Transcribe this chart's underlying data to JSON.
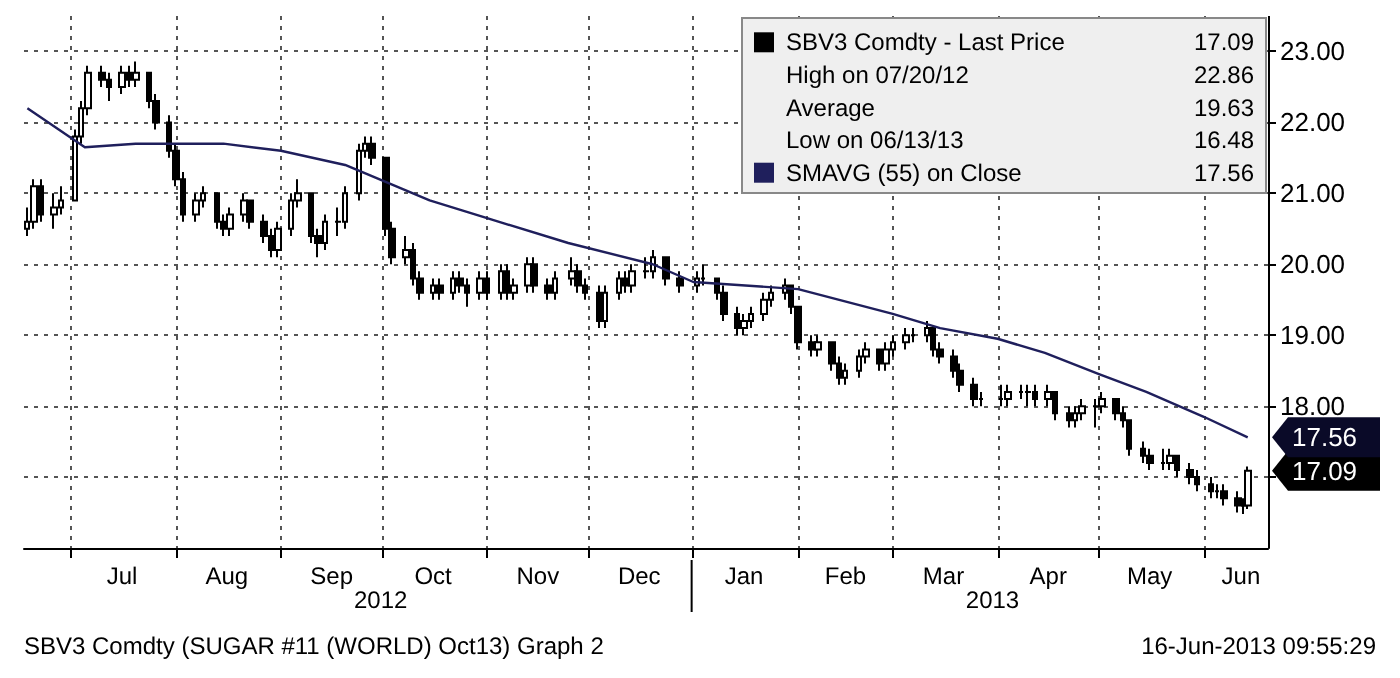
{
  "chart_data": {
    "type": "candlestick",
    "legend": "top right",
    "grid": true,
    "x": [
      "2012-06-18",
      "2012-06-20",
      "2012-06-22",
      "2012-06-26",
      "2012-06-28",
      "2012-07-02",
      "2012-07-04",
      "2012-07-06",
      "2012-07-10",
      "2012-07-12",
      "2012-07-16",
      "2012-07-18",
      "2012-07-20",
      "2012-07-24",
      "2012-07-26",
      "2012-07-30",
      "2012-08-01",
      "2012-08-03",
      "2012-08-07",
      "2012-08-09",
      "2012-08-13",
      "2012-08-15",
      "2012-08-17",
      "2012-08-21",
      "2012-08-23",
      "2012-08-27",
      "2012-08-29",
      "2012-08-31",
      "2012-09-04",
      "2012-09-06",
      "2012-09-10",
      "2012-09-12",
      "2012-09-14",
      "2012-09-18",
      "2012-09-20",
      "2012-09-24",
      "2012-09-26",
      "2012-09-28",
      "2012-10-02",
      "2012-10-04",
      "2012-10-08",
      "2012-10-10",
      "2012-10-12",
      "2012-10-16",
      "2012-10-18",
      "2012-10-22",
      "2012-10-24",
      "2012-10-26",
      "2012-10-30",
      "2012-11-01",
      "2012-11-05",
      "2012-11-07",
      "2012-11-09",
      "2012-11-13",
      "2012-11-15",
      "2012-11-19",
      "2012-11-21",
      "2012-11-26",
      "2012-11-28",
      "2012-11-30",
      "2012-12-04",
      "2012-12-06",
      "2012-12-10",
      "2012-12-12",
      "2012-12-14",
      "2012-12-18",
      "2012-12-20",
      "2012-12-24",
      "2012-12-28",
      "2013-01-02",
      "2013-01-04",
      "2013-01-08",
      "2013-01-10",
      "2013-01-14",
      "2013-01-16",
      "2013-01-18",
      "2013-01-22",
      "2013-01-24",
      "2013-01-28",
      "2013-01-30",
      "2013-02-01",
      "2013-02-05",
      "2013-02-07",
      "2013-02-11",
      "2013-02-13",
      "2013-02-15",
      "2013-02-19",
      "2013-02-21",
      "2013-02-25",
      "2013-02-27",
      "2013-03-01",
      "2013-03-05",
      "2013-03-07",
      "2013-03-11",
      "2013-03-13",
      "2013-03-15",
      "2013-03-19",
      "2013-03-21",
      "2013-03-25",
      "2013-03-27",
      "2013-04-02",
      "2013-04-04",
      "2013-04-08",
      "2013-04-10",
      "2013-04-12",
      "2013-04-16",
      "2013-04-18",
      "2013-04-22",
      "2013-04-24",
      "2013-04-26",
      "2013-04-30",
      "2013-05-02",
      "2013-05-06",
      "2013-05-08",
      "2013-05-10",
      "2013-05-14",
      "2013-05-16",
      "2013-05-20",
      "2013-05-22",
      "2013-05-24",
      "2013-05-28",
      "2013-05-30",
      "2013-06-03",
      "2013-06-05",
      "2013-06-07",
      "2013-06-11",
      "2013-06-13",
      "2013-06-14"
    ],
    "series": [
      {
        "name": "SBV3 Comdty - Last Price",
        "color": "#000000",
        "ohlc": [
          [
            20.5,
            20.8,
            20.4,
            20.6
          ],
          [
            20.6,
            21.2,
            20.5,
            21.1
          ],
          [
            21.1,
            21.2,
            20.6,
            20.7
          ],
          [
            20.7,
            21.0,
            20.5,
            20.8
          ],
          [
            20.8,
            21.1,
            20.7,
            20.9
          ],
          [
            20.9,
            21.9,
            20.9,
            21.8
          ],
          [
            21.8,
            22.3,
            21.7,
            22.2
          ],
          [
            22.2,
            22.8,
            22.1,
            22.7
          ],
          [
            22.7,
            22.8,
            22.5,
            22.6
          ],
          [
            22.6,
            22.7,
            22.3,
            22.5
          ],
          [
            22.5,
            22.8,
            22.4,
            22.7
          ],
          [
            22.7,
            22.8,
            22.5,
            22.6
          ],
          [
            22.6,
            22.86,
            22.5,
            22.7
          ],
          [
            22.7,
            22.7,
            22.2,
            22.3
          ],
          [
            22.3,
            22.4,
            21.9,
            22.0
          ],
          [
            22.0,
            22.1,
            21.5,
            21.6
          ],
          [
            21.6,
            21.7,
            21.1,
            21.2
          ],
          [
            21.2,
            21.3,
            20.6,
            20.7
          ],
          [
            20.7,
            21.0,
            20.6,
            20.9
          ],
          [
            20.9,
            21.1,
            20.8,
            21.0
          ],
          [
            21.0,
            21.0,
            20.5,
            20.6
          ],
          [
            20.6,
            20.7,
            20.4,
            20.5
          ],
          [
            20.5,
            20.8,
            20.4,
            20.7
          ],
          [
            20.7,
            21.0,
            20.6,
            20.9
          ],
          [
            20.9,
            20.9,
            20.5,
            20.6
          ],
          [
            20.6,
            20.7,
            20.3,
            20.4
          ],
          [
            20.4,
            20.5,
            20.1,
            20.2
          ],
          [
            20.2,
            20.6,
            20.1,
            20.5
          ],
          [
            20.5,
            21.0,
            20.4,
            20.9
          ],
          [
            20.9,
            21.2,
            20.8,
            21.0
          ],
          [
            21.0,
            21.0,
            20.3,
            20.4
          ],
          [
            20.4,
            20.5,
            20.1,
            20.3
          ],
          [
            20.3,
            20.7,
            20.2,
            20.6
          ],
          [
            20.6,
            20.8,
            20.4,
            20.6
          ],
          [
            20.6,
            21.1,
            20.5,
            21.0
          ],
          [
            21.0,
            21.7,
            20.9,
            21.6
          ],
          [
            21.6,
            21.8,
            21.5,
            21.7
          ],
          [
            21.7,
            21.8,
            21.4,
            21.5
          ],
          [
            21.5,
            21.5,
            20.4,
            20.5
          ],
          [
            20.5,
            20.6,
            20.0,
            20.1
          ],
          [
            20.1,
            20.4,
            20.0,
            20.2
          ],
          [
            20.2,
            20.3,
            19.7,
            19.8
          ],
          [
            19.8,
            19.9,
            19.5,
            19.6
          ],
          [
            19.6,
            19.8,
            19.5,
            19.7
          ],
          [
            19.7,
            19.8,
            19.5,
            19.6
          ],
          [
            19.6,
            19.9,
            19.5,
            19.8
          ],
          [
            19.8,
            19.9,
            19.6,
            19.7
          ],
          [
            19.7,
            19.8,
            19.4,
            19.6
          ],
          [
            19.6,
            19.9,
            19.5,
            19.8
          ],
          [
            19.8,
            19.9,
            19.5,
            19.6
          ],
          [
            19.6,
            20.0,
            19.5,
            19.9
          ],
          [
            19.9,
            20.0,
            19.5,
            19.6
          ],
          [
            19.6,
            19.8,
            19.5,
            19.7
          ],
          [
            19.7,
            20.1,
            19.6,
            20.0
          ],
          [
            20.0,
            20.1,
            19.6,
            19.7
          ],
          [
            19.7,
            19.8,
            19.5,
            19.6
          ],
          [
            19.6,
            19.9,
            19.5,
            19.8
          ],
          [
            19.8,
            20.1,
            19.7,
            19.9
          ],
          [
            19.9,
            20.0,
            19.6,
            19.7
          ],
          [
            19.7,
            19.8,
            19.5,
            19.6
          ],
          [
            19.6,
            19.7,
            19.1,
            19.2
          ],
          [
            19.2,
            19.7,
            19.1,
            19.6
          ],
          [
            19.6,
            19.9,
            19.5,
            19.8
          ],
          [
            19.8,
            19.9,
            19.6,
            19.7
          ],
          [
            19.7,
            20.0,
            19.6,
            19.9
          ],
          [
            19.9,
            20.1,
            19.8,
            19.9
          ],
          [
            19.9,
            20.2,
            19.8,
            20.1
          ],
          [
            20.1,
            20.1,
            19.7,
            19.8
          ],
          [
            19.8,
            19.9,
            19.6,
            19.7
          ],
          [
            19.7,
            19.9,
            19.6,
            19.8
          ],
          [
            19.8,
            20.0,
            19.7,
            19.8
          ],
          [
            19.8,
            19.8,
            19.5,
            19.6
          ],
          [
            19.6,
            19.7,
            19.2,
            19.3
          ],
          [
            19.3,
            19.4,
            19.0,
            19.1
          ],
          [
            19.1,
            19.3,
            19.0,
            19.2
          ],
          [
            19.2,
            19.4,
            19.1,
            19.3
          ],
          [
            19.3,
            19.6,
            19.2,
            19.5
          ],
          [
            19.5,
            19.7,
            19.4,
            19.6
          ],
          [
            19.6,
            19.8,
            19.5,
            19.7
          ],
          [
            19.7,
            19.7,
            19.3,
            19.4
          ],
          [
            19.4,
            19.4,
            18.8,
            18.9
          ],
          [
            18.9,
            19.0,
            18.7,
            18.8
          ],
          [
            18.8,
            19.0,
            18.7,
            18.9
          ],
          [
            18.9,
            18.9,
            18.5,
            18.6
          ],
          [
            18.6,
            18.7,
            18.3,
            18.4
          ],
          [
            18.4,
            18.6,
            18.3,
            18.5
          ],
          [
            18.5,
            18.8,
            18.4,
            18.7
          ],
          [
            18.7,
            18.9,
            18.6,
            18.8
          ],
          [
            18.8,
            18.8,
            18.5,
            18.6
          ],
          [
            18.6,
            18.9,
            18.5,
            18.8
          ],
          [
            18.8,
            19.0,
            18.7,
            18.9
          ],
          [
            18.9,
            19.1,
            18.8,
            19.0
          ],
          [
            19.0,
            19.1,
            18.9,
            19.0
          ],
          [
            19.0,
            19.2,
            18.9,
            19.1
          ],
          [
            19.1,
            19.1,
            18.7,
            18.8
          ],
          [
            18.8,
            18.9,
            18.6,
            18.7
          ],
          [
            18.7,
            18.8,
            18.4,
            18.5
          ],
          [
            18.5,
            18.6,
            18.2,
            18.3
          ],
          [
            18.3,
            18.4,
            18.0,
            18.1
          ],
          [
            18.1,
            18.2,
            18.0,
            18.1
          ],
          [
            18.1,
            18.3,
            18.0,
            18.1
          ],
          [
            18.1,
            18.3,
            18.0,
            18.2
          ],
          [
            18.2,
            18.3,
            18.1,
            18.2
          ],
          [
            18.2,
            18.3,
            18.0,
            18.2
          ],
          [
            18.2,
            18.3,
            18.0,
            18.1
          ],
          [
            18.1,
            18.3,
            18.0,
            18.2
          ],
          [
            18.2,
            18.2,
            17.8,
            17.9
          ],
          [
            17.9,
            18.0,
            17.7,
            17.8
          ],
          [
            17.8,
            18.0,
            17.7,
            17.9
          ],
          [
            17.9,
            18.1,
            17.8,
            18.0
          ],
          [
            18.0,
            18.1,
            17.7,
            18.0
          ],
          [
            18.0,
            18.2,
            17.9,
            18.1
          ],
          [
            18.1,
            18.1,
            17.8,
            17.9
          ],
          [
            17.9,
            18.0,
            17.7,
            17.8
          ],
          [
            17.8,
            17.8,
            17.3,
            17.4
          ],
          [
            17.4,
            17.5,
            17.2,
            17.3
          ],
          [
            17.3,
            17.4,
            17.1,
            17.2
          ],
          [
            17.2,
            17.4,
            17.1,
            17.2
          ],
          [
            17.2,
            17.4,
            17.1,
            17.3
          ],
          [
            17.3,
            17.3,
            17.0,
            17.1
          ],
          [
            17.1,
            17.2,
            16.9,
            17.0
          ],
          [
            17.0,
            17.1,
            16.8,
            16.9
          ],
          [
            16.9,
            17.0,
            16.7,
            16.8
          ],
          [
            16.8,
            16.9,
            16.7,
            16.8
          ],
          [
            16.8,
            16.9,
            16.6,
            16.7
          ],
          [
            16.7,
            16.8,
            16.5,
            16.6
          ],
          [
            16.6,
            16.7,
            16.48,
            16.6
          ],
          [
            16.6,
            17.15,
            16.55,
            17.09
          ]
        ]
      },
      {
        "name": "SMAVG (55) on Close",
        "type": "line",
        "color": "#1f1f5c",
        "x": [
          "2012-06-18",
          "2012-07-05",
          "2012-07-20",
          "2012-08-15",
          "2012-09-01",
          "2012-09-20",
          "2012-10-15",
          "2012-11-01",
          "2012-11-25",
          "2012-12-20",
          "2013-01-01",
          "2013-02-01",
          "2013-03-01",
          "2013-03-15",
          "2013-04-01",
          "2013-04-15",
          "2013-05-01",
          "2013-05-15",
          "2013-06-01",
          "2013-06-14"
        ],
        "values": [
          22.2,
          21.65,
          21.7,
          21.7,
          21.6,
          21.4,
          20.9,
          20.65,
          20.3,
          20.0,
          19.75,
          19.65,
          19.3,
          19.1,
          18.95,
          18.75,
          18.45,
          18.2,
          17.85,
          17.56
        ]
      }
    ],
    "xlim": [
      "2012-06-17",
      "2013-06-20"
    ],
    "xticks": [
      {
        "value": "2012-07-01",
        "label": null
      },
      {
        "value": "2012-07-16",
        "label": "Jul"
      },
      {
        "value": "2012-08-01",
        "label": null
      },
      {
        "value": "2012-08-16",
        "label": "Aug"
      },
      {
        "value": "2012-09-01",
        "label": null
      },
      {
        "value": "2012-09-16",
        "label": "Sep"
      },
      {
        "value": "2012-10-01",
        "label": null
      },
      {
        "value": "2012-10-16",
        "label": "Oct"
      },
      {
        "value": "2012-11-01",
        "label": null
      },
      {
        "value": "2012-11-16",
        "label": "Nov"
      },
      {
        "value": "2012-12-01",
        "label": null
      },
      {
        "value": "2012-12-16",
        "label": "Dec"
      },
      {
        "value": "2013-01-01",
        "label": null
      },
      {
        "value": "2013-01-16",
        "label": "Jan"
      },
      {
        "value": "2013-02-01",
        "label": null
      },
      {
        "value": "2013-02-15",
        "label": "Feb"
      },
      {
        "value": "2013-03-01",
        "label": null
      },
      {
        "value": "2013-03-16",
        "label": "Mar"
      },
      {
        "value": "2013-04-01",
        "label": null
      },
      {
        "value": "2013-04-16",
        "label": "Apr"
      },
      {
        "value": "2013-05-01",
        "label": null
      },
      {
        "value": "2013-05-16",
        "label": "May"
      },
      {
        "value": "2013-06-01",
        "label": null
      },
      {
        "value": "2013-06-12",
        "label": "Jun"
      }
    ],
    "ylim": [
      16,
      23.5
    ],
    "yticks": [
      {
        "value": 17,
        "label": null
      },
      {
        "value": 18,
        "label": "18.00"
      },
      {
        "value": 19,
        "label": "19.00"
      },
      {
        "value": 20,
        "label": "20.00"
      },
      {
        "value": 21,
        "label": "21.00"
      },
      {
        "value": 22,
        "label": "22.00"
      },
      {
        "value": 23,
        "label": "23.00"
      }
    ],
    "annotations": [
      {
        "text": "17.09",
        "x": "2013-06-14",
        "y": 17.09
      },
      {
        "text": "17.56",
        "x": "2013-06-14",
        "y": 17.56
      },
      "High on 07/20/12",
      "22.86",
      "Average",
      "19.63",
      "Low on 06/13/13",
      "16.48",
      "2012",
      "2013",
      "SBV3 Comdty (SUGAR #11 (WORLD) Oct13) Graph 2",
      "16-Jun-2013 09:55:29"
    ]
  }
}
